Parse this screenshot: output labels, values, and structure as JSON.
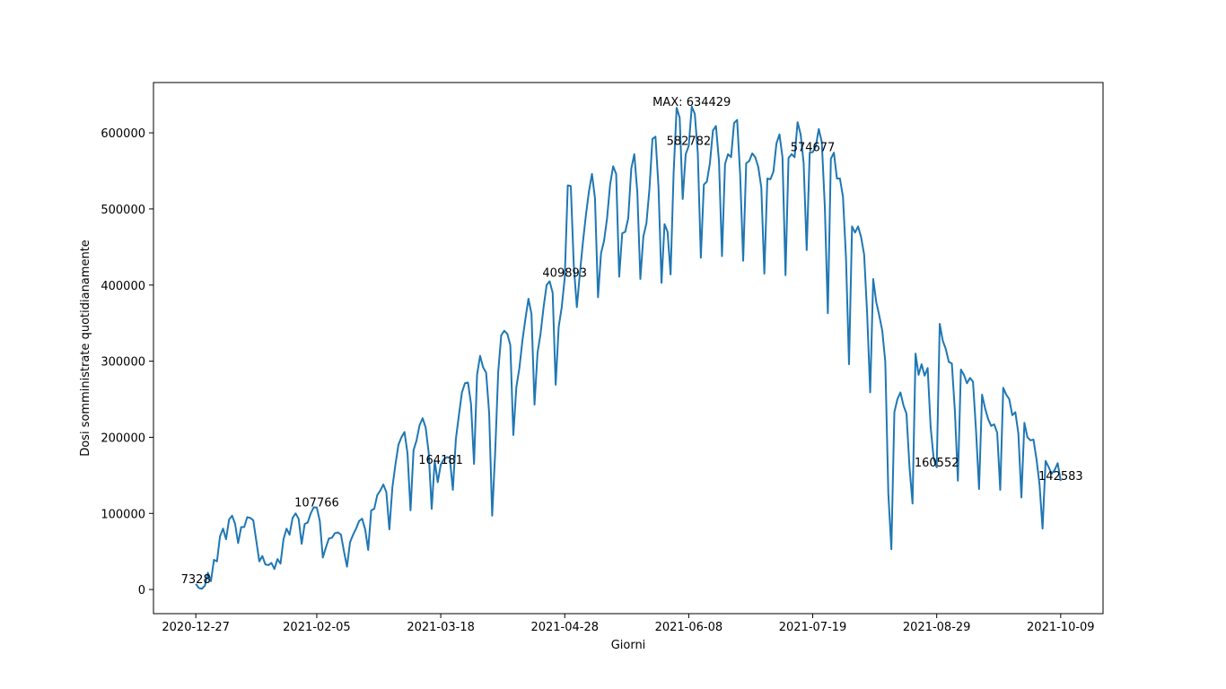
{
  "chart_data": {
    "type": "line",
    "xlabel": "Giorni",
    "ylabel": "Dosi somministrate quotidianamente",
    "xlim": [
      "2020-12-13",
      "2021-10-23"
    ],
    "xticks": [
      "2020-12-27",
      "2021-02-05",
      "2021-03-18",
      "2021-04-28",
      "2021-06-08",
      "2021-07-19",
      "2021-08-29",
      "2021-10-09"
    ],
    "ylim": [
      -31700,
      666100
    ],
    "yticks": [
      0,
      100000,
      200000,
      300000,
      400000,
      500000,
      600000
    ],
    "grid": false,
    "x": [
      "2020-12-27",
      "2020-12-28",
      "2020-12-29",
      "2020-12-30",
      "2020-12-31",
      "2021-01-01",
      "2021-01-02",
      "2021-01-03",
      "2021-01-04",
      "2021-01-05",
      "2021-01-06",
      "2021-01-07",
      "2021-01-08",
      "2021-01-09",
      "2021-01-10",
      "2021-01-11",
      "2021-01-12",
      "2021-01-13",
      "2021-01-14",
      "2021-01-15",
      "2021-01-16",
      "2021-01-17",
      "2021-01-18",
      "2021-01-19",
      "2021-01-20",
      "2021-01-21",
      "2021-01-22",
      "2021-01-23",
      "2021-01-24",
      "2021-01-25",
      "2021-01-26",
      "2021-01-27",
      "2021-01-28",
      "2021-01-29",
      "2021-01-30",
      "2021-01-31",
      "2021-02-01",
      "2021-02-02",
      "2021-02-03",
      "2021-02-04",
      "2021-02-05",
      "2021-02-06",
      "2021-02-07",
      "2021-02-08",
      "2021-02-09",
      "2021-02-10",
      "2021-02-11",
      "2021-02-12",
      "2021-02-13",
      "2021-02-14",
      "2021-02-15",
      "2021-02-16",
      "2021-02-17",
      "2021-02-18",
      "2021-02-19",
      "2021-02-20",
      "2021-02-21",
      "2021-02-22",
      "2021-02-23",
      "2021-02-24",
      "2021-02-25",
      "2021-02-26",
      "2021-02-27",
      "2021-02-28",
      "2021-03-01",
      "2021-03-02",
      "2021-03-03",
      "2021-03-04",
      "2021-03-05",
      "2021-03-06",
      "2021-03-07",
      "2021-03-08",
      "2021-03-09",
      "2021-03-10",
      "2021-03-11",
      "2021-03-12",
      "2021-03-13",
      "2021-03-14",
      "2021-03-15",
      "2021-03-16",
      "2021-03-17",
      "2021-03-18",
      "2021-03-19",
      "2021-03-20",
      "2021-03-21",
      "2021-03-22",
      "2021-03-23",
      "2021-03-24",
      "2021-03-25",
      "2021-03-26",
      "2021-03-27",
      "2021-03-28",
      "2021-03-29",
      "2021-03-30",
      "2021-03-31",
      "2021-04-01",
      "2021-04-02",
      "2021-04-03",
      "2021-04-04",
      "2021-04-05",
      "2021-04-06",
      "2021-04-07",
      "2021-04-08",
      "2021-04-09",
      "2021-04-10",
      "2021-04-11",
      "2021-04-12",
      "2021-04-13",
      "2021-04-14",
      "2021-04-15",
      "2021-04-16",
      "2021-04-17",
      "2021-04-18",
      "2021-04-19",
      "2021-04-20",
      "2021-04-21",
      "2021-04-22",
      "2021-04-23",
      "2021-04-24",
      "2021-04-25",
      "2021-04-26",
      "2021-04-27",
      "2021-04-28",
      "2021-04-29",
      "2021-04-30",
      "2021-05-01",
      "2021-05-02",
      "2021-05-03",
      "2021-05-04",
      "2021-05-05",
      "2021-05-06",
      "2021-05-07",
      "2021-05-08",
      "2021-05-09",
      "2021-05-10",
      "2021-05-11",
      "2021-05-12",
      "2021-05-13",
      "2021-05-14",
      "2021-05-15",
      "2021-05-16",
      "2021-05-17",
      "2021-05-18",
      "2021-05-19",
      "2021-05-20",
      "2021-05-21",
      "2021-05-22",
      "2021-05-23",
      "2021-05-24",
      "2021-05-25",
      "2021-05-26",
      "2021-05-27",
      "2021-05-28",
      "2021-05-29",
      "2021-05-30",
      "2021-05-31",
      "2021-06-01",
      "2021-06-02",
      "2021-06-03",
      "2021-06-04",
      "2021-06-05",
      "2021-06-06",
      "2021-06-07",
      "2021-06-08",
      "2021-06-09",
      "2021-06-10",
      "2021-06-11",
      "2021-06-12",
      "2021-06-13",
      "2021-06-14",
      "2021-06-15",
      "2021-06-16",
      "2021-06-17",
      "2021-06-18",
      "2021-06-19",
      "2021-06-20",
      "2021-06-21",
      "2021-06-22",
      "2021-06-23",
      "2021-06-24",
      "2021-06-25",
      "2021-06-26",
      "2021-06-27",
      "2021-06-28",
      "2021-06-29",
      "2021-06-30",
      "2021-07-01",
      "2021-07-02",
      "2021-07-03",
      "2021-07-04",
      "2021-07-05",
      "2021-07-06",
      "2021-07-07",
      "2021-07-08",
      "2021-07-09",
      "2021-07-10",
      "2021-07-11",
      "2021-07-12",
      "2021-07-13",
      "2021-07-14",
      "2021-07-15",
      "2021-07-16",
      "2021-07-17",
      "2021-07-18",
      "2021-07-19",
      "2021-07-20",
      "2021-07-21",
      "2021-07-22",
      "2021-07-23",
      "2021-07-24",
      "2021-07-25",
      "2021-07-26",
      "2021-07-27",
      "2021-07-28",
      "2021-07-29",
      "2021-07-30",
      "2021-07-31",
      "2021-08-01",
      "2021-08-02",
      "2021-08-03",
      "2021-08-04",
      "2021-08-05",
      "2021-08-06",
      "2021-08-07",
      "2021-08-08",
      "2021-08-09",
      "2021-08-10",
      "2021-08-11",
      "2021-08-12",
      "2021-08-13",
      "2021-08-14",
      "2021-08-15",
      "2021-08-16",
      "2021-08-17",
      "2021-08-18",
      "2021-08-19",
      "2021-08-20",
      "2021-08-21",
      "2021-08-22",
      "2021-08-23",
      "2021-08-24",
      "2021-08-25",
      "2021-08-26",
      "2021-08-27",
      "2021-08-28",
      "2021-08-29",
      "2021-08-30",
      "2021-08-31",
      "2021-09-01",
      "2021-09-02",
      "2021-09-03",
      "2021-09-04",
      "2021-09-05",
      "2021-09-06",
      "2021-09-07",
      "2021-09-08",
      "2021-09-09",
      "2021-09-10",
      "2021-09-11",
      "2021-09-12",
      "2021-09-13",
      "2021-09-14",
      "2021-09-15",
      "2021-09-16",
      "2021-09-17",
      "2021-09-18",
      "2021-09-19",
      "2021-09-20",
      "2021-09-21",
      "2021-09-22",
      "2021-09-23",
      "2021-09-24",
      "2021-09-25",
      "2021-09-26",
      "2021-09-27",
      "2021-09-28",
      "2021-09-29",
      "2021-09-30",
      "2021-10-01",
      "2021-10-02",
      "2021-10-03",
      "2021-10-04",
      "2021-10-05",
      "2021-10-06",
      "2021-10-07",
      "2021-10-08",
      "2021-10-09"
    ],
    "series": [
      {
        "color": "#1f77b4",
        "values": [
          7328,
          2000,
          1000,
          5000,
          22000,
          11000,
          39000,
          37000,
          70000,
          80000,
          66000,
          92000,
          97000,
          86000,
          61000,
          82000,
          82000,
          95000,
          94000,
          91000,
          64000,
          37000,
          44000,
          33000,
          32000,
          35000,
          27000,
          40000,
          34000,
          66000,
          80000,
          72000,
          94000,
          100000,
          93000,
          60000,
          86000,
          88000,
          100000,
          108000,
          107766,
          90000,
          42000,
          55000,
          67000,
          68000,
          74000,
          75000,
          72000,
          50000,
          30000,
          62000,
          72000,
          80000,
          90000,
          93000,
          79000,
          52000,
          104000,
          106000,
          124000,
          130000,
          138000,
          128000,
          79000,
          134000,
          164000,
          190000,
          200000,
          207000,
          179000,
          104000,
          183000,
          196000,
          216000,
          225000,
          213000,
          180000,
          106000,
          169000,
          141000,
          164181,
          171000,
          174000,
          173000,
          131000,
          198000,
          229000,
          259000,
          271000,
          272000,
          244000,
          165000,
          282000,
          307000,
          292000,
          285000,
          232000,
          97000,
          181000,
          286000,
          334000,
          340000,
          336000,
          321000,
          203000,
          266000,
          291000,
          327000,
          356000,
          382000,
          362000,
          243000,
          311000,
          336000,
          371000,
          400000,
          405000,
          390000,
          269000,
          345000,
          371000,
          409893,
          531000,
          530000,
          425000,
          371000,
          415000,
          456000,
          492000,
          523000,
          546000,
          514000,
          384000,
          442000,
          458000,
          488000,
          532000,
          556000,
          546000,
          411000,
          468000,
          470000,
          488000,
          553000,
          572000,
          522000,
          408000,
          464000,
          481000,
          526000,
          592000,
          595000,
          529000,
          403000,
          480000,
          470000,
          414000,
          547000,
          633000,
          620000,
          513000,
          572000,
          582782,
          634429,
          625000,
          573000,
          436000,
          532000,
          536000,
          560000,
          603000,
          609000,
          563000,
          438000,
          559000,
          572000,
          568000,
          613000,
          617000,
          545000,
          432000,
          560000,
          563000,
          573000,
          568000,
          555000,
          528000,
          415000,
          540000,
          539000,
          549000,
          586000,
          598000,
          568000,
          413000,
          567000,
          572000,
          568000,
          614000,
          598000,
          560000,
          446000,
          574000,
          574677,
          582000,
          605000,
          588000,
          503000,
          363000,
          566000,
          574000,
          540000,
          540000,
          516000,
          436000,
          296000,
          477000,
          469000,
          477000,
          463000,
          440000,
          362000,
          259000,
          408000,
          378000,
          360000,
          340000,
          299000,
          126000,
          53000,
          233000,
          250000,
          259000,
          242000,
          231000,
          161000,
          113000,
          310000,
          282000,
          296000,
          281000,
          291000,
          213000,
          172000,
          160552,
          349000,
          327000,
          316000,
          299000,
          297000,
          235000,
          143000,
          289000,
          282000,
          271000,
          278000,
          273000,
          209000,
          132000,
          256000,
          238000,
          224000,
          215000,
          217000,
          206000,
          131000,
          265000,
          256000,
          250000,
          229000,
          233000,
          205000,
          121000,
          219000,
          200000,
          196000,
          197000,
          171000,
          138000,
          80000,
          169000,
          161000,
          152000,
          157000,
          166000,
          142583
        ]
      }
    ],
    "annotations": [
      {
        "x": "2020-12-27",
        "value": 7328
      },
      {
        "x": "2021-02-05",
        "value": 107766
      },
      {
        "x": "2021-03-18",
        "value": 164181
      },
      {
        "x": "2021-04-28",
        "value": 409893
      },
      {
        "x": "2021-06-08",
        "value": 582782
      },
      {
        "x": "2021-07-19",
        "value": 574677
      },
      {
        "x": "2021-08-29",
        "value": 160552
      },
      {
        "x": "2021-10-09",
        "value": 142583
      }
    ],
    "max_annotation": {
      "label": "MAX: 634429",
      "x": "2021-06-09",
      "value": 634429
    }
  }
}
